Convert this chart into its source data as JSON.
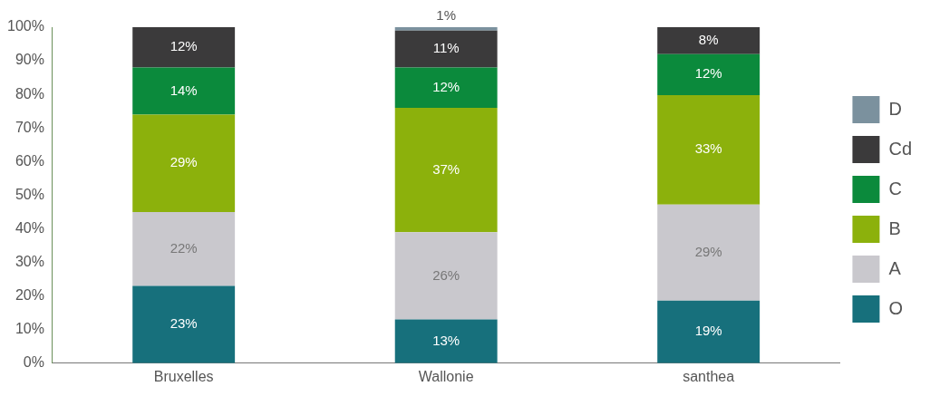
{
  "chart_data": {
    "type": "bar",
    "stacked": true,
    "categories": [
      "Bruxelles",
      "Wallonie",
      "santhea"
    ],
    "series": [
      {
        "name": "O",
        "color": "#17707c",
        "values": [
          23,
          13,
          18.6
        ],
        "value_labels": [
          "23%",
          "13%",
          "19%"
        ]
      },
      {
        "name": "A",
        "color": "#c9c8cd",
        "values": [
          22,
          26,
          28.6
        ],
        "value_labels": [
          "22%",
          "26%",
          "29%"
        ]
      },
      {
        "name": "B",
        "color": "#8cb10c",
        "values": [
          29,
          37,
          32.6
        ],
        "value_labels": [
          "29%",
          "37%",
          "33%"
        ]
      },
      {
        "name": "C",
        "color": "#0b8a3c",
        "values": [
          14,
          12,
          12.2
        ],
        "value_labels": [
          "14%",
          "12%",
          "12%"
        ]
      },
      {
        "name": "Cd",
        "color": "#3b3a3b",
        "values": [
          12,
          11,
          8
        ],
        "value_labels": [
          "12%",
          "11%",
          "8%"
        ]
      },
      {
        "name": "D",
        "color": "#7b919e",
        "values": [
          null,
          1,
          null
        ],
        "value_labels": [
          null,
          "1%",
          null
        ]
      }
    ],
    "ylim": [
      0,
      100
    ],
    "yticks": [
      {
        "value": 0,
        "label": "0%"
      },
      {
        "value": 10,
        "label": "10%"
      },
      {
        "value": 20,
        "label": "20%"
      },
      {
        "value": 30,
        "label": "30%"
      },
      {
        "value": 40,
        "label": "40%"
      },
      {
        "value": 50,
        "label": "50%"
      },
      {
        "value": 60,
        "label": "60%"
      },
      {
        "value": 70,
        "label": "70%"
      },
      {
        "value": 80,
        "label": "80%"
      },
      {
        "value": 90,
        "label": "90%"
      },
      {
        "value": 100,
        "label": "100%"
      }
    ],
    "grid": false,
    "legend": "right"
  }
}
